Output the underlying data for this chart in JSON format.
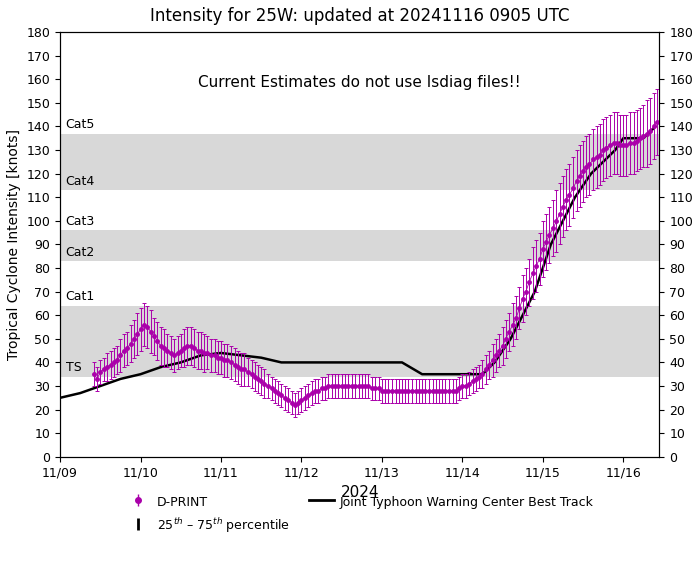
{
  "title": "Intensity for 25W: updated at 20241116 0905 UTC",
  "annotation": "Current Estimates do not use Isdiag files!!",
  "ylabel": "Tropical Cyclone Intensity [knots]",
  "xlabel": "2024",
  "ylim": [
    0,
    180
  ],
  "yticks": [
    0,
    10,
    20,
    30,
    40,
    50,
    60,
    70,
    80,
    90,
    100,
    110,
    120,
    130,
    140,
    150,
    160,
    170,
    180
  ],
  "category_bands": [
    {
      "label": "TS",
      "ymin": 34,
      "ymax": 64,
      "color": "#d8d8d8"
    },
    {
      "label": "Cat1",
      "ymin": 64,
      "ymax": 83,
      "color": "#ffffff"
    },
    {
      "label": "Cat2",
      "ymin": 83,
      "ymax": 96,
      "color": "#d8d8d8"
    },
    {
      "label": "Cat3",
      "ymin": 96,
      "ymax": 113,
      "color": "#ffffff"
    },
    {
      "label": "Cat4",
      "ymin": 113,
      "ymax": 137,
      "color": "#d8d8d8"
    },
    {
      "label": "Cat5",
      "ymin": 137,
      "ymax": 180,
      "color": "#ffffff"
    }
  ],
  "dprint_color": "#aa00aa",
  "track_color": "#000000",
  "xstart_days": 0.0,
  "xend_days": 7.45,
  "xtick_positions": [
    0,
    1,
    2,
    3,
    4,
    5,
    6,
    7
  ],
  "xtick_labels": [
    "11/09",
    "11/10",
    "11/11",
    "11/12",
    "11/13",
    "11/14",
    "11/15",
    "11/16"
  ],
  "best_track": [
    [
      0.0,
      25
    ],
    [
      0.25,
      27
    ],
    [
      0.5,
      30
    ],
    [
      0.75,
      33
    ],
    [
      1.0,
      35
    ],
    [
      1.25,
      38
    ],
    [
      1.5,
      40
    ],
    [
      1.75,
      43
    ],
    [
      2.0,
      44
    ],
    [
      2.25,
      43
    ],
    [
      2.5,
      42
    ],
    [
      2.75,
      40
    ],
    [
      3.0,
      40
    ],
    [
      3.25,
      40
    ],
    [
      3.5,
      40
    ],
    [
      3.75,
      40
    ],
    [
      4.0,
      40
    ],
    [
      4.25,
      40
    ],
    [
      4.5,
      35
    ],
    [
      4.75,
      35
    ],
    [
      5.0,
      35
    ],
    [
      5.1,
      35
    ],
    [
      5.25,
      35
    ],
    [
      5.4,
      40
    ],
    [
      5.5,
      45
    ],
    [
      5.6,
      50
    ],
    [
      5.75,
      60
    ],
    [
      5.9,
      70
    ],
    [
      6.0,
      80
    ],
    [
      6.1,
      90
    ],
    [
      6.25,
      100
    ],
    [
      6.4,
      110
    ],
    [
      6.5,
      115
    ],
    [
      6.6,
      120
    ],
    [
      6.75,
      125
    ],
    [
      6.9,
      130
    ],
    [
      7.0,
      135
    ],
    [
      7.1,
      135
    ],
    [
      7.25,
      135
    ],
    [
      7.4,
      140
    ]
  ],
  "dprint_data": [
    [
      0.42,
      35,
      5
    ],
    [
      0.46,
      33,
      5
    ],
    [
      0.5,
      36,
      5
    ],
    [
      0.54,
      37,
      5
    ],
    [
      0.58,
      38,
      6
    ],
    [
      0.63,
      39,
      6
    ],
    [
      0.67,
      40,
      6
    ],
    [
      0.71,
      41,
      6
    ],
    [
      0.75,
      43,
      7
    ],
    [
      0.79,
      45,
      7
    ],
    [
      0.83,
      46,
      7
    ],
    [
      0.88,
      48,
      8
    ],
    [
      0.92,
      50,
      8
    ],
    [
      0.96,
      52,
      9
    ],
    [
      1.0,
      54,
      9
    ],
    [
      1.04,
      56,
      9
    ],
    [
      1.08,
      55,
      9
    ],
    [
      1.13,
      53,
      9
    ],
    [
      1.17,
      51,
      8
    ],
    [
      1.21,
      49,
      8
    ],
    [
      1.25,
      47,
      8
    ],
    [
      1.29,
      46,
      8
    ],
    [
      1.33,
      45,
      7
    ],
    [
      1.38,
      44,
      7
    ],
    [
      1.42,
      43,
      7
    ],
    [
      1.46,
      44,
      7
    ],
    [
      1.5,
      45,
      7
    ],
    [
      1.54,
      46,
      8
    ],
    [
      1.58,
      47,
      8
    ],
    [
      1.63,
      47,
      8
    ],
    [
      1.67,
      46,
      8
    ],
    [
      1.71,
      45,
      8
    ],
    [
      1.75,
      45,
      8
    ],
    [
      1.79,
      44,
      8
    ],
    [
      1.83,
      44,
      7
    ],
    [
      1.88,
      43,
      7
    ],
    [
      1.92,
      43,
      7
    ],
    [
      1.96,
      42,
      7
    ],
    [
      2.0,
      42,
      7
    ],
    [
      2.04,
      41,
      7
    ],
    [
      2.08,
      41,
      7
    ],
    [
      2.13,
      40,
      7
    ],
    [
      2.17,
      39,
      7
    ],
    [
      2.21,
      38,
      7
    ],
    [
      2.25,
      37,
      7
    ],
    [
      2.29,
      37,
      7
    ],
    [
      2.33,
      36,
      6
    ],
    [
      2.38,
      35,
      6
    ],
    [
      2.42,
      34,
      6
    ],
    [
      2.46,
      33,
      6
    ],
    [
      2.5,
      32,
      6
    ],
    [
      2.54,
      31,
      6
    ],
    [
      2.58,
      30,
      5
    ],
    [
      2.63,
      29,
      5
    ],
    [
      2.67,
      28,
      5
    ],
    [
      2.71,
      27,
      5
    ],
    [
      2.75,
      26,
      5
    ],
    [
      2.79,
      25,
      5
    ],
    [
      2.83,
      24,
      5
    ],
    [
      2.88,
      23,
      5
    ],
    [
      2.92,
      22,
      5
    ],
    [
      2.96,
      23,
      5
    ],
    [
      3.0,
      24,
      5
    ],
    [
      3.04,
      25,
      5
    ],
    [
      3.08,
      26,
      5
    ],
    [
      3.13,
      27,
      5
    ],
    [
      3.17,
      28,
      5
    ],
    [
      3.21,
      28,
      5
    ],
    [
      3.25,
      29,
      5
    ],
    [
      3.29,
      29,
      5
    ],
    [
      3.33,
      30,
      5
    ],
    [
      3.38,
      30,
      5
    ],
    [
      3.42,
      30,
      5
    ],
    [
      3.46,
      30,
      5
    ],
    [
      3.5,
      30,
      5
    ],
    [
      3.54,
      30,
      5
    ],
    [
      3.58,
      30,
      5
    ],
    [
      3.63,
      30,
      5
    ],
    [
      3.67,
      30,
      5
    ],
    [
      3.71,
      30,
      5
    ],
    [
      3.75,
      30,
      5
    ],
    [
      3.79,
      30,
      5
    ],
    [
      3.83,
      30,
      5
    ],
    [
      3.88,
      29,
      5
    ],
    [
      3.92,
      29,
      5
    ],
    [
      3.96,
      29,
      5
    ],
    [
      4.0,
      28,
      5
    ],
    [
      4.04,
      28,
      5
    ],
    [
      4.08,
      28,
      5
    ],
    [
      4.13,
      28,
      5
    ],
    [
      4.17,
      28,
      5
    ],
    [
      4.21,
      28,
      5
    ],
    [
      4.25,
      28,
      5
    ],
    [
      4.29,
      28,
      5
    ],
    [
      4.33,
      28,
      5
    ],
    [
      4.38,
      28,
      5
    ],
    [
      4.42,
      28,
      5
    ],
    [
      4.46,
      28,
      5
    ],
    [
      4.5,
      28,
      5
    ],
    [
      4.54,
      28,
      5
    ],
    [
      4.58,
      28,
      5
    ],
    [
      4.63,
      28,
      5
    ],
    [
      4.67,
      28,
      5
    ],
    [
      4.71,
      28,
      5
    ],
    [
      4.75,
      28,
      5
    ],
    [
      4.79,
      28,
      5
    ],
    [
      4.83,
      28,
      5
    ],
    [
      4.88,
      28,
      5
    ],
    [
      4.92,
      28,
      5
    ],
    [
      4.96,
      29,
      5
    ],
    [
      5.0,
      30,
      5
    ],
    [
      5.04,
      30,
      5
    ],
    [
      5.08,
      31,
      5
    ],
    [
      5.13,
      32,
      5
    ],
    [
      5.17,
      33,
      5
    ],
    [
      5.21,
      34,
      5
    ],
    [
      5.25,
      35,
      6
    ],
    [
      5.29,
      37,
      6
    ],
    [
      5.33,
      39,
      6
    ],
    [
      5.38,
      41,
      7
    ],
    [
      5.42,
      43,
      7
    ],
    [
      5.46,
      45,
      7
    ],
    [
      5.5,
      47,
      8
    ],
    [
      5.54,
      50,
      8
    ],
    [
      5.58,
      53,
      8
    ],
    [
      5.63,
      56,
      9
    ],
    [
      5.67,
      59,
      9
    ],
    [
      5.71,
      63,
      9
    ],
    [
      5.75,
      67,
      10
    ],
    [
      5.79,
      70,
      10
    ],
    [
      5.83,
      74,
      10
    ],
    [
      5.88,
      78,
      11
    ],
    [
      5.92,
      81,
      11
    ],
    [
      5.96,
      84,
      11
    ],
    [
      6.0,
      88,
      12
    ],
    [
      6.04,
      91,
      12
    ],
    [
      6.08,
      94,
      12
    ],
    [
      6.13,
      97,
      12
    ],
    [
      6.17,
      100,
      13
    ],
    [
      6.21,
      103,
      13
    ],
    [
      6.25,
      106,
      13
    ],
    [
      6.29,
      109,
      13
    ],
    [
      6.33,
      111,
      13
    ],
    [
      6.38,
      114,
      13
    ],
    [
      6.42,
      117,
      13
    ],
    [
      6.46,
      119,
      13
    ],
    [
      6.5,
      121,
      13
    ],
    [
      6.54,
      123,
      13
    ],
    [
      6.58,
      124,
      13
    ],
    [
      6.63,
      126,
      13
    ],
    [
      6.67,
      127,
      13
    ],
    [
      6.71,
      128,
      13
    ],
    [
      6.75,
      130,
      13
    ],
    [
      6.79,
      131,
      13
    ],
    [
      6.83,
      132,
      13
    ],
    [
      6.88,
      133,
      13
    ],
    [
      6.92,
      133,
      13
    ],
    [
      6.96,
      132,
      13
    ],
    [
      7.0,
      132,
      13
    ],
    [
      7.04,
      132,
      13
    ],
    [
      7.08,
      133,
      13
    ],
    [
      7.13,
      133,
      13
    ],
    [
      7.17,
      134,
      13
    ],
    [
      7.21,
      135,
      13
    ],
    [
      7.25,
      136,
      13
    ],
    [
      7.29,
      137,
      14
    ],
    [
      7.33,
      138,
      14
    ],
    [
      7.38,
      140,
      14
    ],
    [
      7.42,
      142,
      14
    ]
  ]
}
